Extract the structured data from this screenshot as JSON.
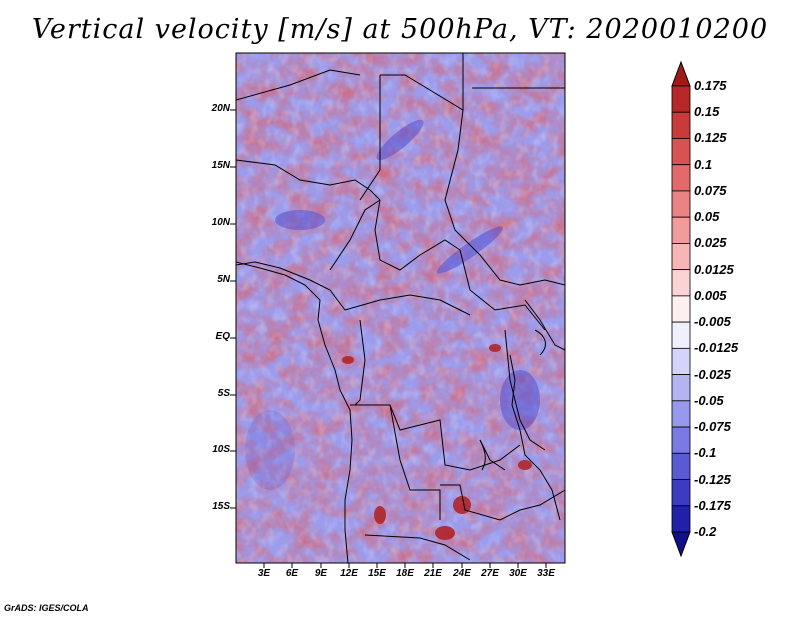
{
  "title": "Vertical velocity [m/s] at 500hPa, VT: 2020010200",
  "footer": "GrADS: IGES/COLA",
  "map": {
    "lat_labels": [
      "20N",
      "15N",
      "10N",
      "5N",
      "EQ",
      "5S",
      "10S",
      "15S"
    ],
    "lon_labels": [
      "3E",
      "6E",
      "9E",
      "12E",
      "15E",
      "18E",
      "21E",
      "24E",
      "27E",
      "30E",
      "33E"
    ],
    "field": "vertical velocity",
    "units": "m/s",
    "level": "500hPa"
  },
  "colorbar": {
    "levels": [
      "0.175",
      "0.15",
      "0.125",
      "0.1",
      "0.075",
      "0.05",
      "0.025",
      "0.0125",
      "0.005",
      "-0.005",
      "-0.0125",
      "-0.025",
      "-0.05",
      "-0.075",
      "-0.1",
      "-0.125",
      "-0.175",
      "-0.2"
    ],
    "colors": [
      "#a01a1a",
      "#b82828",
      "#c93a3a",
      "#d85252",
      "#e26a6a",
      "#ea8484",
      "#f19c9c",
      "#f6b6b6",
      "#fad4d4",
      "#fdf0f0",
      "#f0f0fd",
      "#d4d4fa",
      "#b4b4f3",
      "#9898ec",
      "#7a7ae2",
      "#5a5ad4",
      "#3c3cc2",
      "#2020a8",
      "#10108a"
    ]
  },
  "colors": {
    "positive": "#d93838",
    "negative": "#3c3cc8",
    "border": "#000000"
  }
}
